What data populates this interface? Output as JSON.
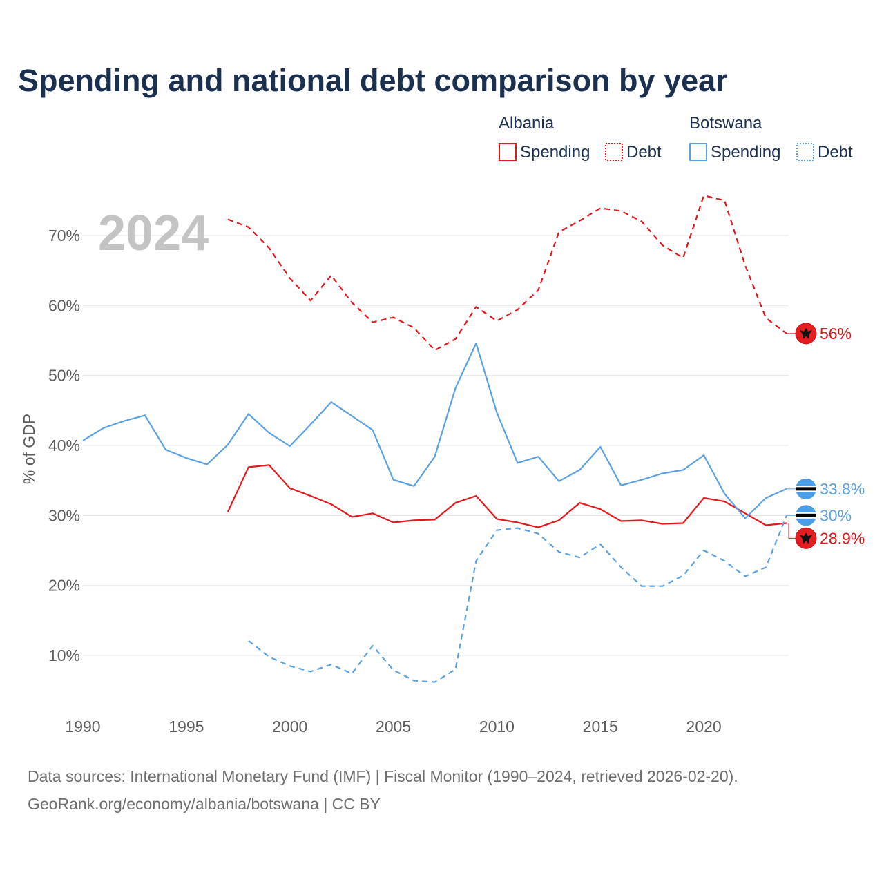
{
  "chart_data": {
    "type": "line",
    "title": "Spending and national debt comparison by year",
    "year_label": "2024",
    "ylabel": "% of GDP",
    "xlim": [
      1990,
      2024
    ],
    "ylim": [
      3,
      77
    ],
    "y_ticks": [
      10,
      20,
      30,
      40,
      50,
      60,
      70
    ],
    "y_tick_labels": [
      "10%",
      "20%",
      "30%",
      "40%",
      "50%",
      "60%",
      "70%"
    ],
    "x_ticks": [
      1990,
      1995,
      2000,
      2005,
      2010,
      2015,
      2020
    ],
    "x_tick_labels": [
      "1990",
      "1995",
      "2000",
      "2005",
      "2010",
      "2015",
      "2020"
    ],
    "legend": {
      "groups": [
        {
          "name": "Albania",
          "items": [
            {
              "label": "Spending",
              "color": "#e4171b",
              "style": "solid"
            },
            {
              "label": "Debt",
              "color": "#e4171b",
              "style": "dotted"
            }
          ]
        },
        {
          "name": "Botswana",
          "items": [
            {
              "label": "Spending",
              "color": "#5aa1e3",
              "style": "solid"
            },
            {
              "label": "Debt",
              "color": "#5aa1e3",
              "style": "dotted"
            }
          ]
        }
      ]
    },
    "series": [
      {
        "name": "Albania Debt",
        "country": "Albania",
        "metric": "Debt",
        "color": "#e4171b",
        "dashed": true,
        "x": [
          1997,
          1998,
          1999,
          2000,
          2001,
          2002,
          2003,
          2004,
          2005,
          2006,
          2007,
          2008,
          2009,
          2010,
          2011,
          2012,
          2013,
          2014,
          2015,
          2016,
          2017,
          2018,
          2019,
          2020,
          2021,
          2022,
          2023,
          2024
        ],
        "y": [
          72.3,
          71.2,
          68.2,
          63.9,
          60.7,
          64.3,
          60.4,
          57.6,
          58.3,
          56.8,
          53.6,
          55.2,
          59.8,
          57.8,
          59.4,
          62.2,
          70.5,
          72.1,
          73.9,
          73.5,
          72.0,
          68.6,
          66.8,
          75.7,
          75.0,
          65.7,
          58.2,
          56.0
        ],
        "end_label": "56%",
        "flag": "albania"
      },
      {
        "name": "Albania Spending",
        "country": "Albania",
        "metric": "Spending",
        "color": "#e4171b",
        "dashed": false,
        "x": [
          1997,
          1998,
          1999,
          2000,
          2001,
          2002,
          2003,
          2004,
          2005,
          2006,
          2007,
          2008,
          2009,
          2010,
          2011,
          2012,
          2013,
          2014,
          2015,
          2016,
          2017,
          2018,
          2019,
          2020,
          2021,
          2022,
          2023,
          2024
        ],
        "y": [
          30.5,
          36.9,
          37.2,
          33.9,
          32.8,
          31.6,
          29.8,
          30.3,
          29.0,
          29.3,
          29.4,
          31.8,
          32.8,
          29.5,
          29.0,
          28.3,
          29.3,
          31.8,
          30.9,
          29.2,
          29.3,
          28.8,
          28.9,
          32.5,
          32.0,
          30.3,
          28.6,
          28.9
        ],
        "end_label": "28.9%",
        "flag": "albania"
      },
      {
        "name": "Botswana Spending",
        "country": "Botswana",
        "metric": "Spending",
        "color": "#5aa1e3",
        "dashed": false,
        "x": [
          1990,
          1991,
          1992,
          1993,
          1994,
          1995,
          1996,
          1997,
          1998,
          1999,
          2000,
          2001,
          2002,
          2003,
          2004,
          2005,
          2006,
          2007,
          2008,
          2009,
          2010,
          2011,
          2012,
          2013,
          2014,
          2015,
          2016,
          2017,
          2018,
          2019,
          2020,
          2021,
          2022,
          2023,
          2024
        ],
        "y": [
          40.7,
          42.5,
          43.5,
          44.3,
          39.4,
          38.2,
          37.3,
          40.1,
          44.5,
          41.8,
          39.9,
          43.0,
          46.2,
          44.2,
          42.2,
          35.1,
          34.2,
          38.4,
          48.2,
          54.6,
          44.7,
          37.5,
          38.4,
          34.9,
          36.5,
          39.8,
          34.3,
          35.1,
          36.0,
          36.5,
          38.6,
          33.1,
          29.6,
          32.5,
          33.8
        ],
        "end_label": "33.8%",
        "flag": "botswana"
      },
      {
        "name": "Botswana Debt",
        "country": "Botswana",
        "metric": "Debt",
        "color": "#5aa1e3",
        "dashed": true,
        "x": [
          1998,
          1999,
          2000,
          2001,
          2002,
          2003,
          2004,
          2005,
          2006,
          2007,
          2008,
          2009,
          2010,
          2011,
          2012,
          2013,
          2014,
          2015,
          2016,
          2017,
          2018,
          2019,
          2020,
          2021,
          2022,
          2023,
          2024
        ],
        "y": [
          12.1,
          9.8,
          8.5,
          7.7,
          8.7,
          7.4,
          11.4,
          7.9,
          6.4,
          6.2,
          8.0,
          23.5,
          27.9,
          28.2,
          27.4,
          24.8,
          24.0,
          25.9,
          22.6,
          19.9,
          19.9,
          21.4,
          25.0,
          23.5,
          21.3,
          22.6,
          30.0
        ],
        "end_label": "30%",
        "flag": "botswana"
      }
    ]
  },
  "source": {
    "line1": "Data sources: International Monetary Fund (IMF) | Fiscal Monitor (1990–2024, retrieved 2026-02-20).",
    "line2": "GeoRank.org/economy/albania/botswana | CC BY"
  }
}
